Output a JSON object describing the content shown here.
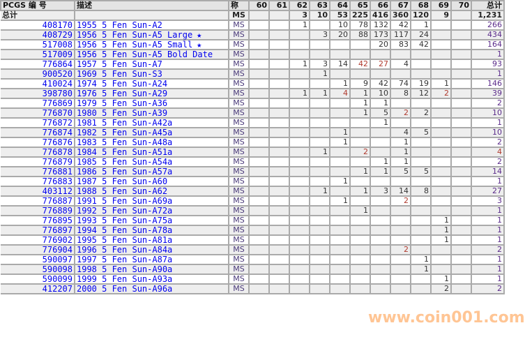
{
  "headers": {
    "pcgs": "PCGS 编 号",
    "desc": "描述",
    "designation": "称",
    "grades": [
      "60",
      "61",
      "62",
      "63",
      "64",
      "65",
      "66",
      "67",
      "68",
      "69",
      "70"
    ],
    "total": "总计"
  },
  "totals": {
    "label": "总计",
    "designation": "MS",
    "counts": [
      "",
      "",
      "3",
      "10",
      "53",
      "225",
      "416",
      "360",
      "120",
      "9",
      ""
    ],
    "total": "1,231"
  },
  "rows": [
    {
      "id": "408170",
      "desc": "1955 5 Fen Sun-A2",
      "star": false,
      "d": "MS",
      "c": [
        "",
        "",
        "1",
        "",
        "10",
        "78",
        "132",
        "42",
        "1",
        "",
        ""
      ],
      "t": "266"
    },
    {
      "id": "408729",
      "desc": "1956 5 Fen Sun-A5 Large",
      "star": true,
      "d": "MS",
      "c": [
        "",
        "",
        "",
        "3",
        "20",
        "88",
        "173",
        "117",
        "24",
        "",
        ""
      ],
      "t": "434"
    },
    {
      "id": "517008",
      "desc": "1956 5 Fen Sun-A5 Small",
      "star": true,
      "d": "MS",
      "c": [
        "",
        "",
        "",
        "",
        "",
        "",
        "20",
        "83",
        "42",
        "",
        ""
      ],
      "t": "164"
    },
    {
      "id": "517009",
      "desc": "1956 5 Fen Sun-A5 Bold Date",
      "star": false,
      "d": "MS",
      "c": [
        "",
        "",
        "",
        "",
        "",
        "",
        "",
        "",
        "",
        "",
        ""
      ],
      "t": "1"
    },
    {
      "id": "776864",
      "desc": "1957 5 Fen Sun-A7",
      "star": false,
      "d": "MS",
      "c": [
        "",
        "",
        "1",
        "3",
        "14",
        "42",
        "27",
        "4",
        "",
        "",
        ""
      ],
      "t": "93"
    },
    {
      "id": "900520",
      "desc": "1969 5 Fen Sun-S3",
      "star": false,
      "d": "MS",
      "c": [
        "",
        "",
        "",
        "1",
        "",
        "",
        "",
        "",
        "",
        "",
        ""
      ],
      "t": "1"
    },
    {
      "id": "410024",
      "desc": "1974 5 Fen Sun-A24",
      "star": false,
      "d": "MS",
      "c": [
        "",
        "",
        "",
        "",
        "1",
        "9",
        "42",
        "74",
        "19",
        "1",
        ""
      ],
      "t": "146"
    },
    {
      "id": "398780",
      "desc": "1976 5 Fen Sun-A29",
      "star": false,
      "d": "MS",
      "c": [
        "",
        "",
        "1",
        "1",
        "4",
        "1",
        "10",
        "8",
        "12",
        "2",
        ""
      ],
      "t": "39"
    },
    {
      "id": "776869",
      "desc": "1979 5 Fen Sun-A36",
      "star": false,
      "d": "MS",
      "c": [
        "",
        "",
        "",
        "",
        "",
        "1",
        "1",
        "",
        "",
        "",
        ""
      ],
      "t": "2"
    },
    {
      "id": "776870",
      "desc": "1980 5 Fen Sun-A39",
      "star": false,
      "d": "MS",
      "c": [
        "",
        "",
        "",
        "",
        "",
        "1",
        "5",
        "2",
        "2",
        "",
        ""
      ],
      "t": "10"
    },
    {
      "id": "776872",
      "desc": "1981 5 Fen Sun-A42a",
      "star": false,
      "d": "MS",
      "c": [
        "",
        "",
        "",
        "",
        "",
        "",
        "1",
        "",
        "",
        "",
        ""
      ],
      "t": "1"
    },
    {
      "id": "776874",
      "desc": "1982 5 Fen Sun-A45a",
      "star": false,
      "d": "MS",
      "c": [
        "",
        "",
        "",
        "",
        "1",
        "",
        "",
        "4",
        "5",
        "",
        ""
      ],
      "t": "10"
    },
    {
      "id": "776876",
      "desc": "1983 5 Fen Sun-A48a",
      "star": false,
      "d": "MS",
      "c": [
        "",
        "",
        "",
        "",
        "1",
        "",
        "",
        "1",
        "",
        "",
        ""
      ],
      "t": "2"
    },
    {
      "id": "776878",
      "desc": "1984 5 Fen Sun-A51a",
      "star": false,
      "d": "MS",
      "c": [
        "",
        "",
        "",
        "1",
        "",
        "2",
        "",
        "1",
        "",
        "",
        ""
      ],
      "t": "4"
    },
    {
      "id": "776879",
      "desc": "1985 5 Fen Sun-A54a",
      "star": false,
      "d": "MS",
      "c": [
        "",
        "",
        "",
        "",
        "",
        "",
        "1",
        "1",
        "",
        "",
        ""
      ],
      "t": "2"
    },
    {
      "id": "776881",
      "desc": "1986 5 Fen Sun-A57a",
      "star": false,
      "d": "MS",
      "c": [
        "",
        "",
        "",
        "",
        "",
        "1",
        "1",
        "5",
        "5",
        "",
        ""
      ],
      "t": "14"
    },
    {
      "id": "776883",
      "desc": "1987 5 Fen Sun-A60",
      "star": false,
      "d": "MS",
      "c": [
        "",
        "",
        "",
        "",
        "1",
        "",
        "",
        "",
        "",
        "",
        ""
      ],
      "t": "1"
    },
    {
      "id": "403112",
      "desc": "1988 5 Fen Sun-A62",
      "star": false,
      "d": "MS",
      "c": [
        "",
        "",
        "",
        "1",
        "",
        "1",
        "3",
        "14",
        "8",
        "",
        ""
      ],
      "t": "27"
    },
    {
      "id": "776887",
      "desc": "1991 5 Fen Sun-A69a",
      "star": false,
      "d": "MS",
      "c": [
        "",
        "",
        "",
        "",
        "1",
        "",
        "",
        "2",
        "",
        "",
        ""
      ],
      "t": "3"
    },
    {
      "id": "776889",
      "desc": "1992 5 Fen Sun-A72a",
      "star": false,
      "d": "MS",
      "c": [
        "",
        "",
        "",
        "",
        "",
        "1",
        "",
        "",
        "",
        "",
        ""
      ],
      "t": "1"
    },
    {
      "id": "776895",
      "desc": "1993 5 Fen Sun-A75a",
      "star": false,
      "d": "MS",
      "c": [
        "",
        "",
        "",
        "",
        "",
        "",
        "",
        "",
        "",
        "1",
        ""
      ],
      "t": "1"
    },
    {
      "id": "776897",
      "desc": "1994 5 Fen Sun-A78a",
      "star": false,
      "d": "MS",
      "c": [
        "",
        "",
        "",
        "",
        "",
        "",
        "",
        "",
        "",
        "1",
        ""
      ],
      "t": "1"
    },
    {
      "id": "776902",
      "desc": "1995 5 Fen Sun-A81a",
      "star": false,
      "d": "MS",
      "c": [
        "",
        "",
        "",
        "",
        "",
        "",
        "",
        "",
        "",
        "1",
        ""
      ],
      "t": "1"
    },
    {
      "id": "776904",
      "desc": "1996 5 Fen Sun-A84a",
      "star": false,
      "d": "MS",
      "c": [
        "",
        "",
        "",
        "",
        "",
        "",
        "",
        "2",
        "",
        "",
        ""
      ],
      "t": "2"
    },
    {
      "id": "590097",
      "desc": "1997 5 Fen Sun-A87a",
      "star": false,
      "d": "MS",
      "c": [
        "",
        "",
        "",
        "",
        "",
        "",
        "",
        "",
        "1",
        "",
        ""
      ],
      "t": "1"
    },
    {
      "id": "590098",
      "desc": "1998 5 Fen Sun-A90a",
      "star": false,
      "d": "MS",
      "c": [
        "",
        "",
        "",
        "",
        "",
        "",
        "",
        "",
        "1",
        "",
        ""
      ],
      "t": "1"
    },
    {
      "id": "590099",
      "desc": "1999 5 Fen Sun-A93a",
      "star": false,
      "d": "MS",
      "c": [
        "",
        "",
        "",
        "",
        "",
        "",
        "",
        "",
        "",
        "1",
        ""
      ],
      "t": "1"
    },
    {
      "id": "412207",
      "desc": "2000 5 Fen Sun-A96a",
      "star": false,
      "d": "MS",
      "c": [
        "",
        "",
        "",
        "",
        "",
        "",
        "",
        "",
        "",
        "2",
        ""
      ],
      "t": "2"
    }
  ],
  "star_icon": "star-icon",
  "watermark": "www.coin001.com",
  "colors": {
    "link": "#0000ee",
    "grid": "#aaaaaa",
    "alt_row": "#eeeeee",
    "highlight_number": "#b03a2e",
    "watermark": "#ff963c"
  }
}
